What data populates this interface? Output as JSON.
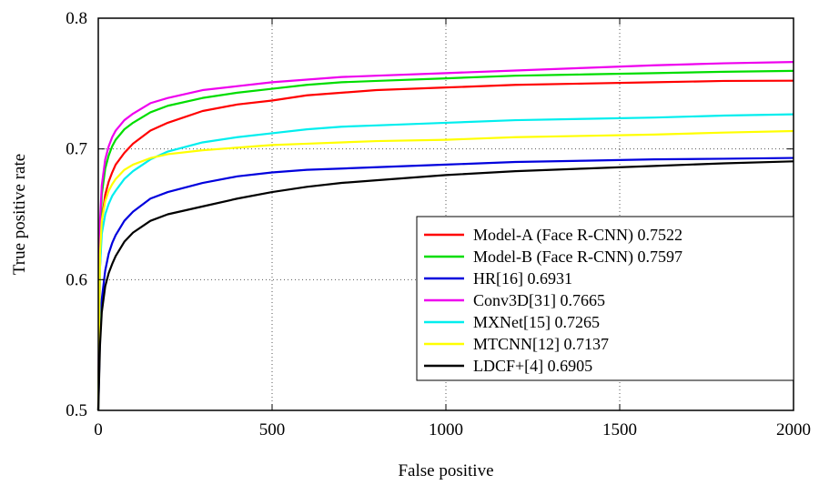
{
  "chart_data": {
    "type": "line",
    "title": "",
    "xlabel": "False positive",
    "ylabel": "True positive rate",
    "xlim": [
      0,
      2000
    ],
    "ylim": [
      0.5,
      0.8
    ],
    "xticks": [
      0,
      500,
      1000,
      1500,
      2000
    ],
    "xtick_labels": [
      "0",
      "500",
      "1000",
      "1500",
      "2000"
    ],
    "yticks": [
      0.5,
      0.6,
      0.7,
      0.8
    ],
    "ytick_labels": [
      "0.5",
      "0.6",
      "0.7",
      "0.8"
    ],
    "grid": true,
    "legend_position": "bottom-right",
    "series": [
      {
        "name": "Model-A (Face R-CNN) 0.7522",
        "color": "#ff0000",
        "x": [
          0,
          5,
          10,
          20,
          30,
          40,
          50,
          75,
          100,
          150,
          200,
          300,
          400,
          500,
          600,
          700,
          800,
          1000,
          1200,
          1400,
          1600,
          1800,
          2000
        ],
        "y": [
          0.5,
          0.61,
          0.645,
          0.665,
          0.675,
          0.682,
          0.688,
          0.697,
          0.704,
          0.714,
          0.72,
          0.729,
          0.734,
          0.737,
          0.741,
          0.743,
          0.745,
          0.747,
          0.749,
          0.75,
          0.751,
          0.752,
          0.7522
        ]
      },
      {
        "name": "Model-B (Face R-CNN) 0.7597",
        "color": "#00dd00",
        "x": [
          0,
          5,
          10,
          20,
          30,
          40,
          50,
          75,
          100,
          150,
          200,
          300,
          400,
          500,
          600,
          700,
          800,
          1000,
          1200,
          1400,
          1600,
          1800,
          2000
        ],
        "y": [
          0.5,
          0.63,
          0.665,
          0.685,
          0.695,
          0.702,
          0.707,
          0.715,
          0.72,
          0.728,
          0.733,
          0.739,
          0.743,
          0.746,
          0.749,
          0.751,
          0.752,
          0.754,
          0.756,
          0.757,
          0.758,
          0.759,
          0.7597
        ]
      },
      {
        "name": "HR[16] 0.6931",
        "color": "#0000dd",
        "x": [
          0,
          5,
          10,
          20,
          30,
          40,
          50,
          75,
          100,
          150,
          200,
          300,
          400,
          500,
          600,
          700,
          800,
          1000,
          1200,
          1400,
          1600,
          1800,
          2000
        ],
        "y": [
          0.5,
          0.56,
          0.585,
          0.607,
          0.62,
          0.628,
          0.634,
          0.645,
          0.652,
          0.662,
          0.667,
          0.674,
          0.679,
          0.682,
          0.684,
          0.685,
          0.686,
          0.688,
          0.69,
          0.691,
          0.692,
          0.6925,
          0.6931
        ]
      },
      {
        "name": "Conv3D[31] 0.7665",
        "color": "#ee00ee",
        "x": [
          0,
          5,
          10,
          20,
          30,
          40,
          50,
          75,
          100,
          150,
          200,
          300,
          400,
          500,
          600,
          700,
          800,
          1000,
          1200,
          1400,
          1600,
          1800,
          2000
        ],
        "y": [
          0.5,
          0.645,
          0.672,
          0.692,
          0.702,
          0.709,
          0.714,
          0.722,
          0.727,
          0.735,
          0.739,
          0.745,
          0.748,
          0.751,
          0.753,
          0.755,
          0.756,
          0.758,
          0.76,
          0.762,
          0.764,
          0.7655,
          0.7665
        ]
      },
      {
        "name": "MXNet[15] 0.7265",
        "color": "#00eeee",
        "x": [
          0,
          5,
          10,
          20,
          30,
          40,
          50,
          75,
          100,
          150,
          200,
          300,
          400,
          500,
          600,
          700,
          800,
          1000,
          1200,
          1400,
          1600,
          1800,
          2000
        ],
        "y": [
          0.5,
          0.61,
          0.635,
          0.65,
          0.658,
          0.664,
          0.668,
          0.677,
          0.683,
          0.692,
          0.698,
          0.705,
          0.709,
          0.712,
          0.715,
          0.717,
          0.718,
          0.72,
          0.722,
          0.723,
          0.724,
          0.7255,
          0.7265
        ]
      },
      {
        "name": "MTCNN[12] 0.7137",
        "color": "#ffff00",
        "x": [
          0,
          5,
          10,
          20,
          30,
          40,
          50,
          75,
          100,
          150,
          200,
          300,
          400,
          500,
          600,
          700,
          800,
          1000,
          1200,
          1400,
          1600,
          1800,
          2000
        ],
        "y": [
          0.5,
          0.62,
          0.645,
          0.66,
          0.668,
          0.673,
          0.677,
          0.684,
          0.688,
          0.693,
          0.696,
          0.699,
          0.701,
          0.703,
          0.704,
          0.705,
          0.706,
          0.707,
          0.709,
          0.71,
          0.711,
          0.7125,
          0.7137
        ]
      },
      {
        "name": "LDCF+[4] 0.6905",
        "color": "#000000",
        "x": [
          0,
          5,
          10,
          20,
          30,
          40,
          50,
          75,
          100,
          150,
          200,
          300,
          400,
          500,
          600,
          700,
          800,
          1000,
          1200,
          1400,
          1600,
          1800,
          2000
        ],
        "y": [
          0.5,
          0.55,
          0.575,
          0.595,
          0.605,
          0.612,
          0.618,
          0.629,
          0.636,
          0.645,
          0.65,
          0.656,
          0.662,
          0.667,
          0.671,
          0.674,
          0.676,
          0.68,
          0.683,
          0.685,
          0.687,
          0.689,
          0.6905
        ]
      }
    ]
  }
}
